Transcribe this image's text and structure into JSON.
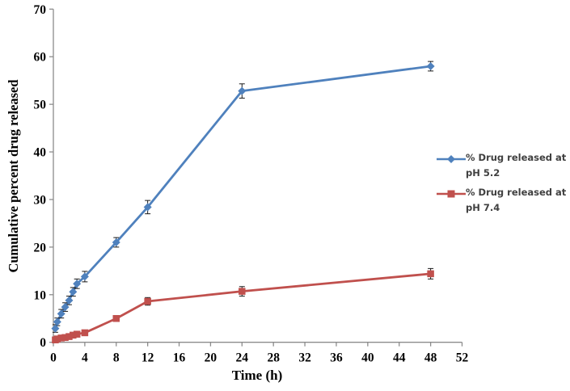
{
  "figure": {
    "background": "#ffffff",
    "axis_color": "#8c8c8c",
    "tick_label_color": "#000000",
    "error_bar_color": "#1a1a1a",
    "legend_text_color": "#404040"
  },
  "chart_data": {
    "type": "line",
    "title": "",
    "xlabel": "Time (h)",
    "ylabel": "Cumulative percent drug released",
    "xlim": [
      0,
      52
    ],
    "ylim": [
      0,
      70
    ],
    "x_ticks": [
      0,
      4,
      8,
      12,
      16,
      20,
      24,
      28,
      32,
      36,
      40,
      44,
      48,
      52
    ],
    "y_ticks": [
      0,
      10,
      20,
      30,
      40,
      50,
      60,
      70
    ],
    "grid": false,
    "legend_position": "right",
    "x": [
      0.25,
      0.5,
      1,
      1.5,
      2,
      2.5,
      3,
      4,
      8,
      12,
      24,
      48
    ],
    "series": [
      {
        "name": "% Drug released at pH 5.2",
        "label_lines": [
          "% Drug released at",
          "pH 5.2"
        ],
        "color": "#4f81bd",
        "marker": "diamond",
        "values": [
          2.9,
          4.3,
          6.0,
          7.4,
          8.8,
          10.6,
          12.3,
          13.8,
          21.0,
          28.4,
          52.8,
          58.0
        ],
        "errors": [
          0.8,
          0.8,
          0.9,
          0.9,
          0.9,
          0.9,
          1.0,
          1.1,
          1.0,
          1.4,
          1.5,
          1.0
        ]
      },
      {
        "name": "% Drug released at pH 7.4",
        "label_lines": [
          "% Drug released at",
          "pH 7.4"
        ],
        "color": "#c0504d",
        "marker": "square",
        "values": [
          0.5,
          0.7,
          0.9,
          1.0,
          1.2,
          1.5,
          1.7,
          2.0,
          5.0,
          8.6,
          10.7,
          14.4
        ],
        "errors": [
          0.2,
          0.2,
          0.3,
          0.3,
          0.3,
          0.4,
          0.4,
          0.5,
          0.5,
          0.8,
          1.0,
          1.1
        ]
      }
    ]
  }
}
